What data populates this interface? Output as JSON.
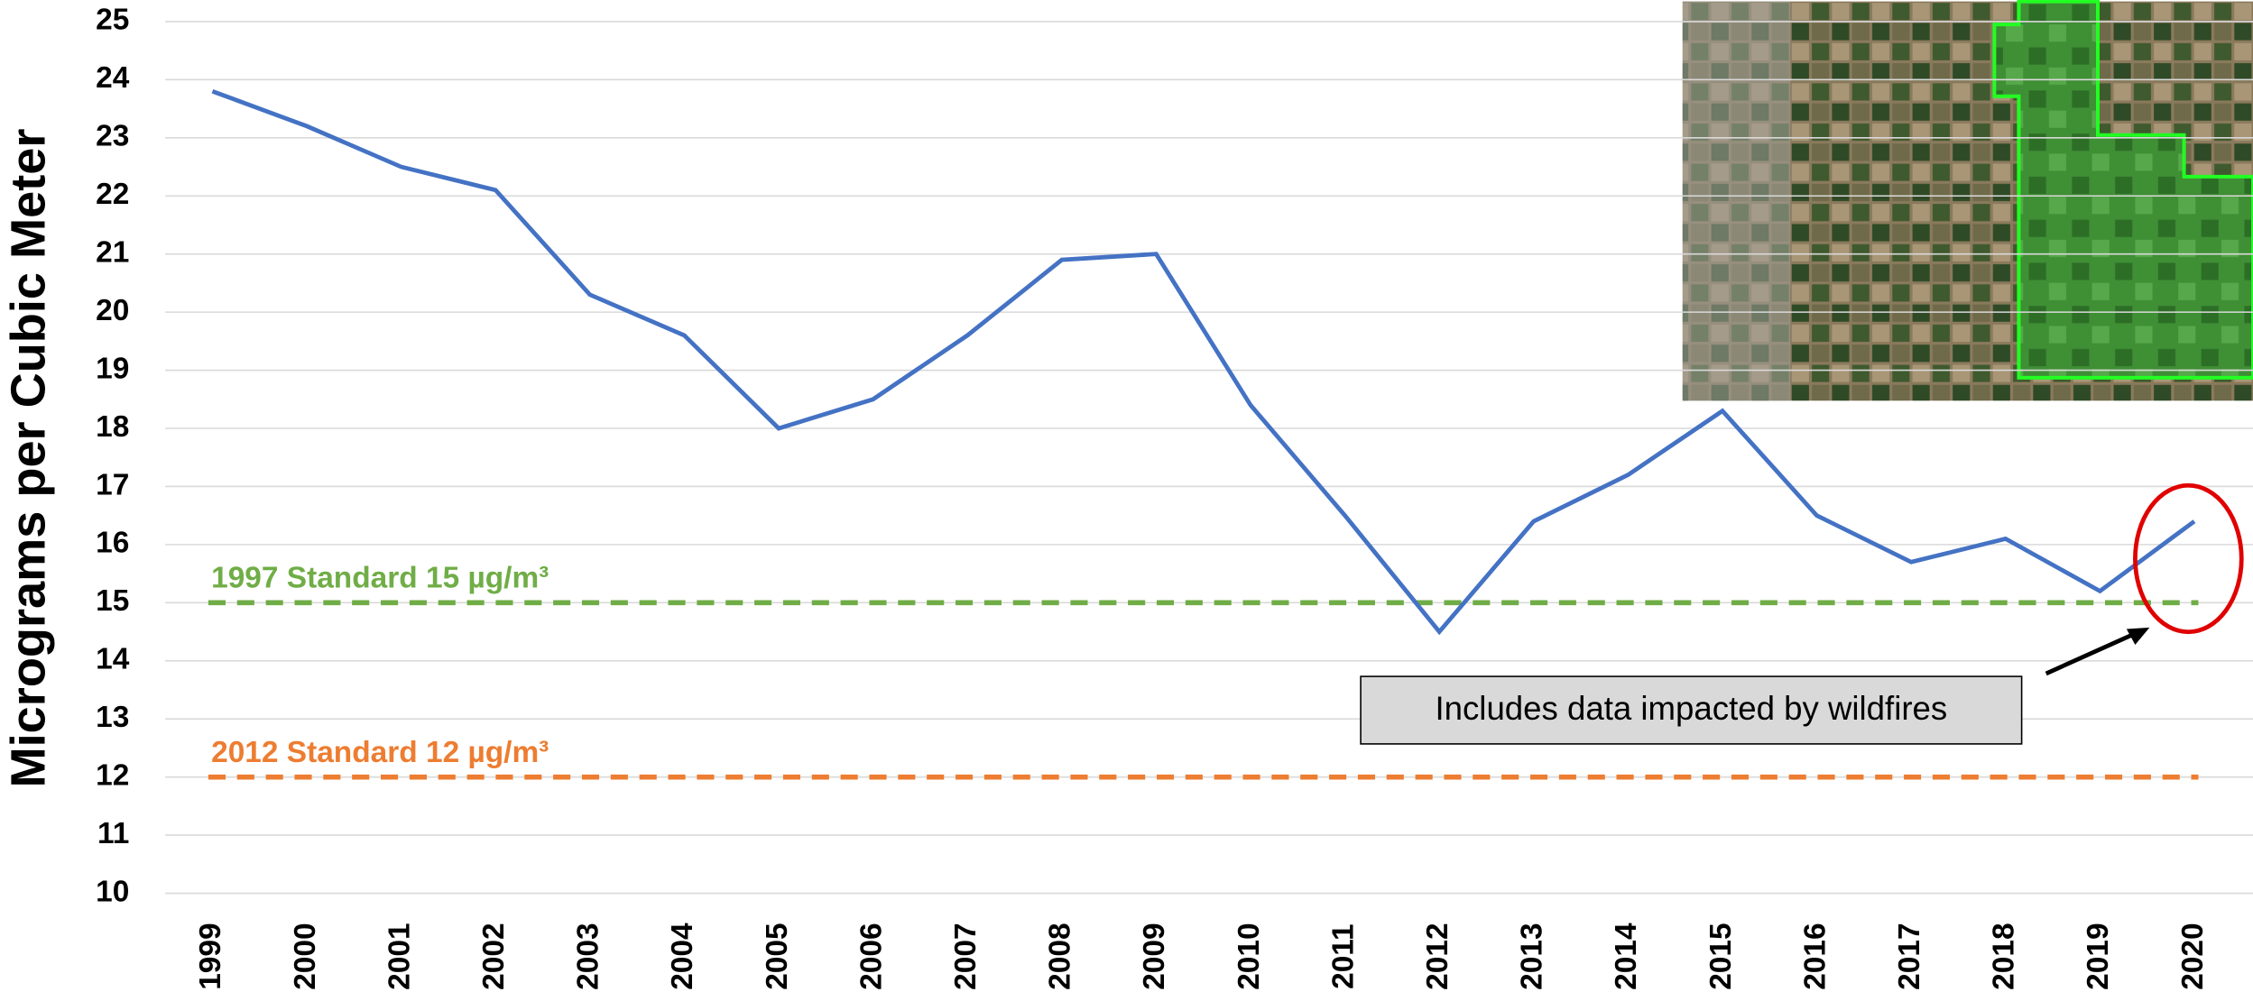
{
  "chart_data": {
    "type": "line",
    "y_label": "Micrograms per Cubic Meter",
    "categories": [
      "1999",
      "2000",
      "2001",
      "2002",
      "2003",
      "2004",
      "2005",
      "2006",
      "2007",
      "2008",
      "2009",
      "2010",
      "2011",
      "2012",
      "2013",
      "2014",
      "2015",
      "2016",
      "2017",
      "2018",
      "2019",
      "2020"
    ],
    "series": [
      {
        "color": "#4472c4",
        "values": [
          23.8,
          23.2,
          22.5,
          22.1,
          20.3,
          19.6,
          18.0,
          18.5,
          19.6,
          20.9,
          21.0,
          18.4,
          16.5,
          14.5,
          16.4,
          17.2,
          18.3,
          16.5,
          15.7,
          16.1,
          15.2,
          16.4
        ]
      }
    ],
    "ylim": [
      10,
      25
    ],
    "yticks": [
      10,
      11,
      12,
      13,
      14,
      15,
      16,
      17,
      18,
      19,
      20,
      21,
      22,
      23,
      24,
      25
    ],
    "grid": true,
    "reference_lines": [
      {
        "value": 15,
        "label": "1997 Standard 15 µg/m³",
        "color": "#70ad47"
      },
      {
        "value": 12,
        "label": "2012 Standard 12 µg/m³",
        "color": "#ed7d31"
      }
    ],
    "annotation": "Includes data impacted by wildfires"
  }
}
